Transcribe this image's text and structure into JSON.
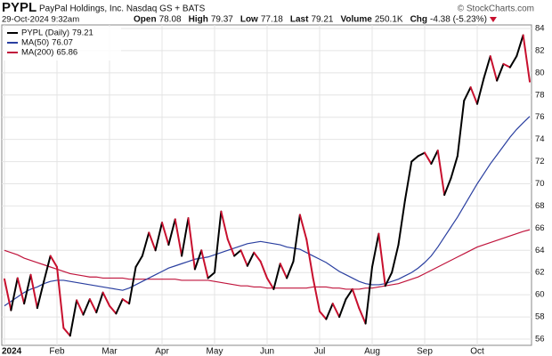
{
  "chart_data": {
    "type": "line",
    "title": "PYPL",
    "subtitle": "PayPal Holdings, Inc. Nasdaq GS + BATS",
    "credit": "© StockCharts.com",
    "date": "29-Oct-2024 9:32am",
    "stats": [
      {
        "label": "Open",
        "value": "78.08"
      },
      {
        "label": "High",
        "value": "79.37"
      },
      {
        "label": "Low",
        "value": "77.18"
      },
      {
        "label": "Last",
        "value": "79.21"
      },
      {
        "label": "Volume",
        "value": "250.1K"
      },
      {
        "label": "Chg",
        "value": "-4.38 (-5.23%)"
      }
    ],
    "categories": [
      "2024",
      null,
      null,
      null,
      null,
      null,
      null,
      null,
      "Feb",
      null,
      null,
      null,
      null,
      null,
      null,
      null,
      "Mar",
      null,
      null,
      null,
      null,
      null,
      null,
      null,
      "Apr",
      null,
      null,
      null,
      null,
      null,
      null,
      null,
      "May",
      null,
      null,
      null,
      null,
      null,
      null,
      null,
      "Jun",
      null,
      null,
      null,
      null,
      null,
      null,
      null,
      "Jul",
      null,
      null,
      null,
      null,
      null,
      null,
      null,
      "Aug",
      null,
      null,
      null,
      null,
      null,
      null,
      null,
      "Sep",
      null,
      null,
      null,
      null,
      null,
      null,
      null,
      "Oct",
      null,
      null,
      null,
      null,
      null,
      null,
      null,
      null
    ],
    "series": [
      {
        "name": "PYPL (Daily)",
        "legend_value": "79.21",
        "color": "#000000",
        "down_color": "#c8102e",
        "values": [
          61.4,
          58.6,
          61.5,
          59.2,
          61.8,
          58.8,
          61.2,
          63.5,
          62.5,
          57.0,
          56.3,
          59.5,
          58.2,
          59.6,
          58.4,
          60.2,
          59.0,
          58.3,
          59.6,
          59.2,
          62.5,
          63.5,
          65.6,
          64.0,
          66.5,
          64.5,
          66.8,
          63.5,
          66.9,
          62.3,
          64.0,
          61.5,
          62.0,
          67.5,
          65.0,
          63.5,
          64.0,
          62.6,
          63.8,
          63.0,
          61.5,
          60.5,
          62.8,
          61.5,
          63.0,
          67.2,
          65.0,
          61.5,
          58.5,
          57.8,
          59.2,
          58.0,
          59.6,
          60.5,
          58.8,
          57.4,
          62.5,
          65.5,
          60.8,
          62.0,
          64.5,
          68.5,
          72.0,
          72.5,
          72.8,
          71.8,
          73.0,
          69.0,
          70.5,
          72.5,
          77.5,
          78.7,
          77.2,
          79.5,
          81.5,
          79.3,
          80.8,
          80.5,
          81.5,
          83.4,
          79.21
        ]
      },
      {
        "name": "MA(50)",
        "legend_value": "76.07",
        "color": "#2a3fa0",
        "values": [
          59.0,
          59.4,
          59.8,
          60.2,
          60.5,
          60.7,
          61.0,
          61.2,
          61.3,
          61.3,
          61.2,
          61.1,
          61.0,
          60.9,
          60.8,
          60.7,
          60.6,
          60.5,
          60.4,
          60.6,
          60.9,
          61.2,
          61.5,
          61.8,
          62.1,
          62.4,
          62.6,
          62.8,
          63.0,
          63.2,
          63.3,
          63.4,
          63.6,
          63.8,
          64.0,
          64.2,
          64.4,
          64.6,
          64.7,
          64.8,
          64.7,
          64.6,
          64.5,
          64.3,
          64.2,
          64.1,
          63.8,
          63.5,
          63.2,
          62.9,
          62.5,
          62.1,
          61.8,
          61.5,
          61.2,
          61.0,
          60.9,
          60.9,
          61.0,
          61.2,
          61.4,
          61.7,
          62.0,
          62.4,
          62.9,
          63.5,
          64.3,
          65.2,
          66.1,
          67.0,
          68.0,
          69.0,
          70.0,
          70.9,
          71.8,
          72.6,
          73.4,
          74.2,
          74.9,
          75.5,
          76.07
        ]
      },
      {
        "name": "MA(200)",
        "legend_value": "65.86",
        "color": "#c0143c",
        "values": [
          64.0,
          63.8,
          63.6,
          63.3,
          63.1,
          62.9,
          62.7,
          62.5,
          62.3,
          62.1,
          61.9,
          61.8,
          61.7,
          61.6,
          61.6,
          61.5,
          61.5,
          61.5,
          61.5,
          61.4,
          61.4,
          61.4,
          61.4,
          61.4,
          61.4,
          61.4,
          61.4,
          61.3,
          61.3,
          61.3,
          61.3,
          61.3,
          61.2,
          61.1,
          61.0,
          60.9,
          60.8,
          60.8,
          60.7,
          60.7,
          60.6,
          60.6,
          60.6,
          60.6,
          60.6,
          60.6,
          60.6,
          60.7,
          60.7,
          60.7,
          60.6,
          60.6,
          60.5,
          60.5,
          60.5,
          60.6,
          60.6,
          60.7,
          60.8,
          60.9,
          61.0,
          61.2,
          61.4,
          61.6,
          61.9,
          62.2,
          62.5,
          62.8,
          63.1,
          63.4,
          63.7,
          64.0,
          64.3,
          64.5,
          64.7,
          64.9,
          65.1,
          65.3,
          65.5,
          65.7,
          65.86
        ]
      }
    ],
    "ylim": [
      55.44,
      84.32
    ],
    "yticks": [
      56,
      58,
      60,
      62,
      64,
      66,
      68,
      70,
      72,
      74,
      76,
      78,
      80,
      82,
      84
    ],
    "grid": true
  }
}
